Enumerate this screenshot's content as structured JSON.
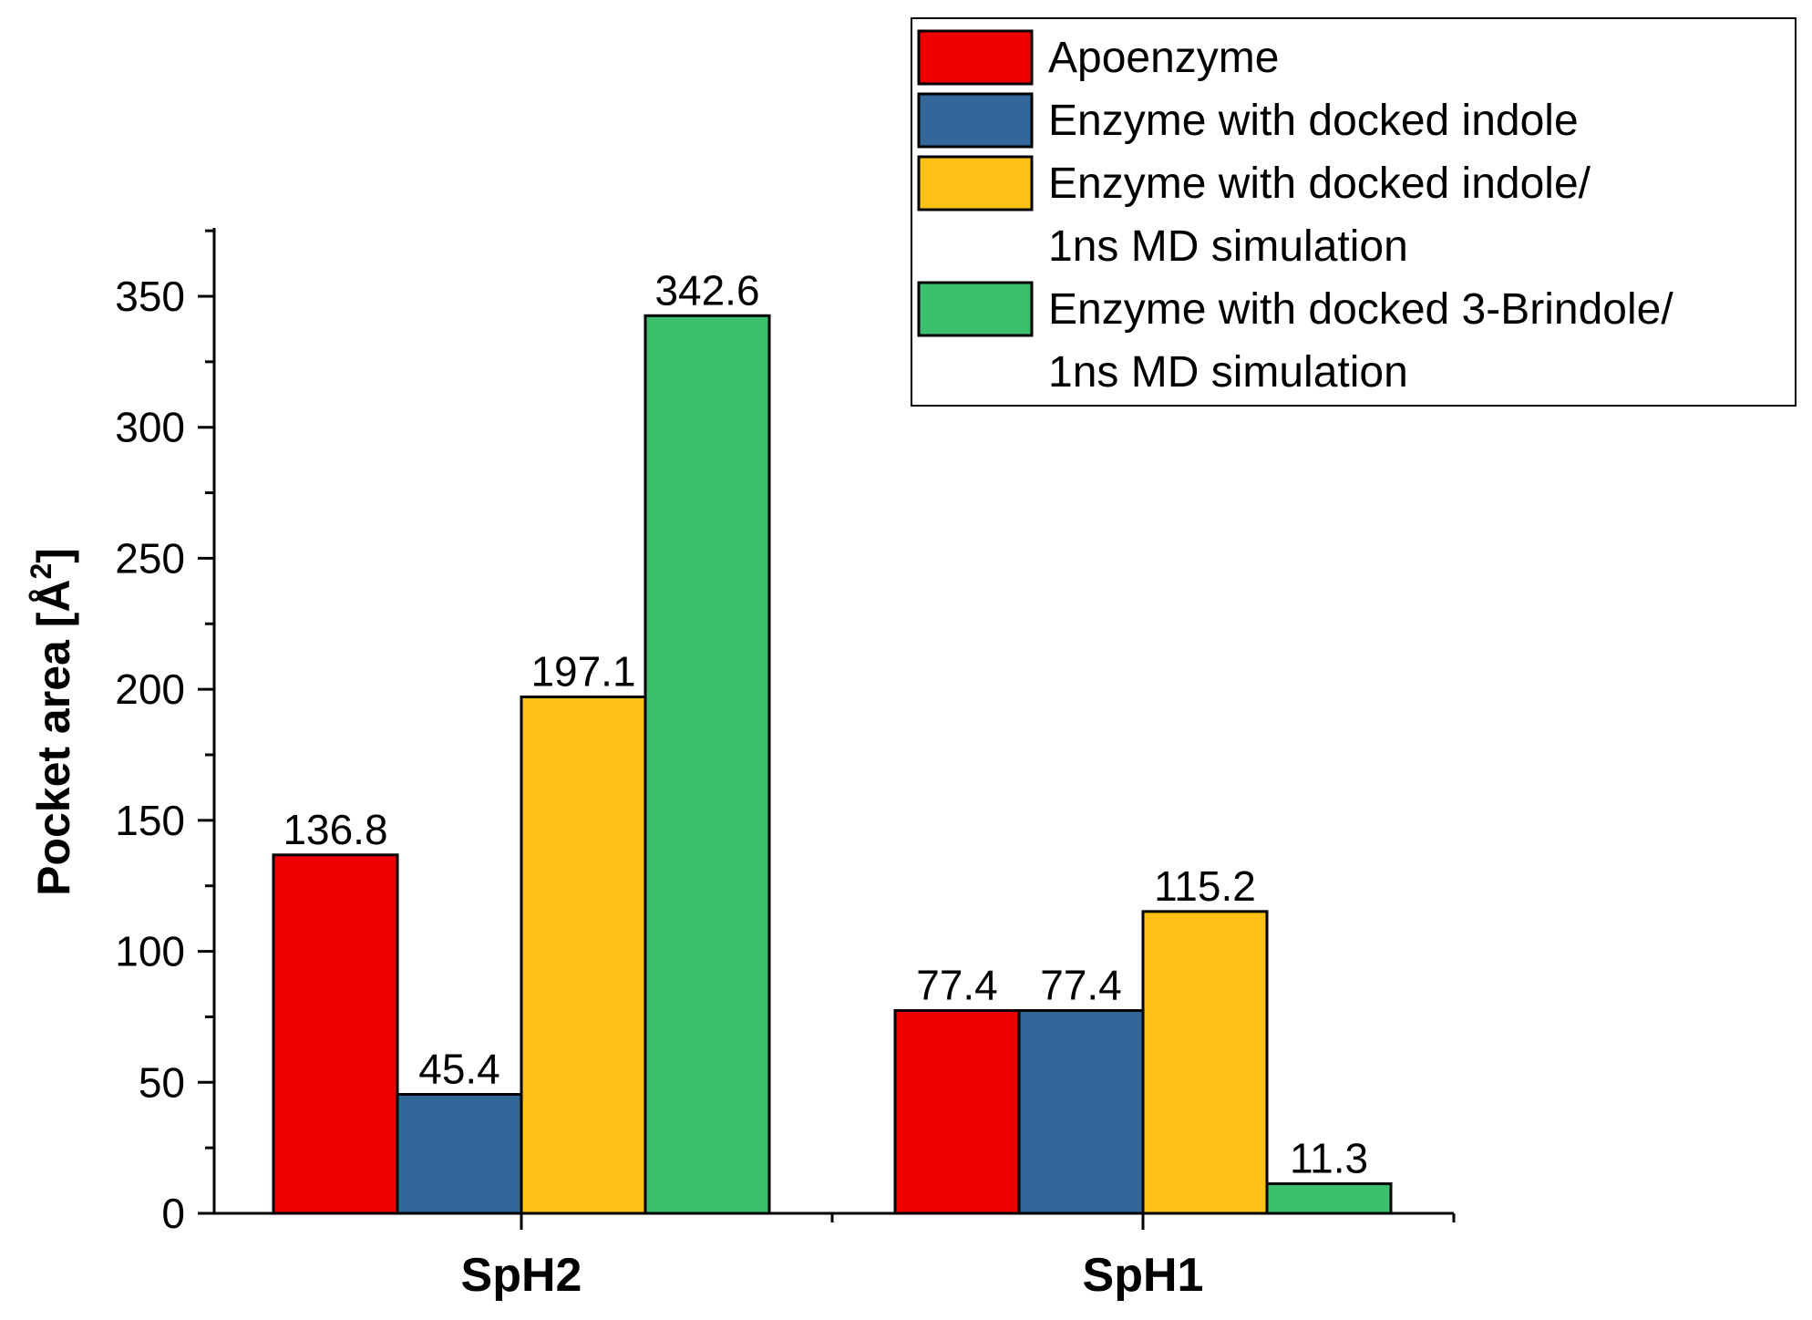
{
  "chart_data": {
    "type": "bar",
    "title": "",
    "xlabel": "",
    "ylabel": {
      "main": "Pocket area [Å",
      "sup": "2",
      "close": "]"
    },
    "ylim": [
      0,
      375
    ],
    "yticks": [
      0,
      50,
      100,
      150,
      200,
      250,
      300,
      350
    ],
    "yticks_minor": [
      25,
      75,
      125,
      175,
      225,
      275,
      325,
      375
    ],
    "categories": [
      "SpH2",
      "SpH1"
    ],
    "series": [
      {
        "name": "Apoenzyme",
        "color": "#ee0000",
        "values": [
          136.8,
          77.4
        ],
        "labels": [
          "136.8",
          "77.4"
        ]
      },
      {
        "name": "Enzyme with docked indole",
        "color": "#336699",
        "values": [
          45.4,
          77.4
        ],
        "labels": [
          "45.4",
          "77.4"
        ]
      },
      {
        "name": "Enzyme with docked indole/ 1ns MD simulation",
        "color": "#fec216",
        "values": [
          197.1,
          115.2
        ],
        "labels": [
          "197.1",
          "115.2"
        ]
      },
      {
        "name": "Enzyme with docked 3-Brindole/ 1ns MD simulation",
        "color": "#3cc06d",
        "values": [
          342.6,
          11.3
        ],
        "labels": [
          "342.6",
          "11.3"
        ]
      }
    ],
    "legend": {
      "position": "top-right",
      "entries": [
        {
          "lines": [
            "Apoenzyme"
          ],
          "color": "#ee0000"
        },
        {
          "lines": [
            "Enzyme with docked indole"
          ],
          "color": "#336699"
        },
        {
          "lines": [
            "Enzyme with docked indole/",
            "1ns MD simulation"
          ],
          "color": "#fec216"
        },
        {
          "lines": [
            "Enzyme with docked 3-Brindole/",
            "1ns MD simulation"
          ],
          "color": "#3cc06d"
        }
      ]
    }
  }
}
